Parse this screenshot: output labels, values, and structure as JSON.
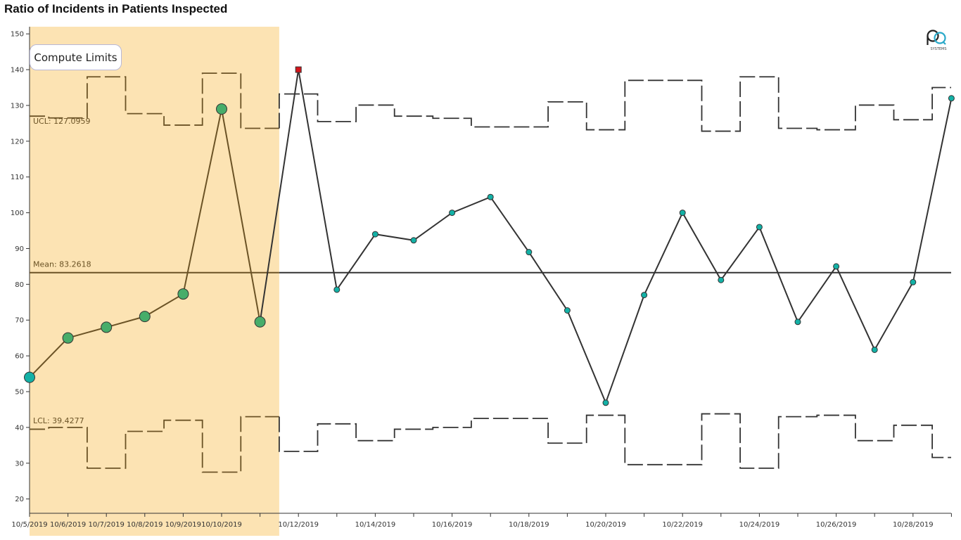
{
  "title": "Ratio of Incidents in Patients Inspected",
  "controls": {
    "compute_limits_label": "Compute Limits"
  },
  "logo": {
    "icon": "pq-systems-logo-icon",
    "text": "SYSTEMS"
  },
  "colors": {
    "highlight": "#fce3b3",
    "highlight_line": "#6b5326",
    "main_line": "#333333",
    "point_fill": "#13b1a6",
    "highlight_point_fill": "#47ad6a",
    "out_of_control": "#d4141a"
  },
  "chart_data": {
    "type": "line",
    "title": "Ratio of Incidents in Patients Inspected",
    "xlabel": "",
    "ylabel": "",
    "ylim": [
      16,
      152
    ],
    "yticks": [
      20,
      30,
      40,
      50,
      60,
      70,
      80,
      90,
      100,
      110,
      120,
      130,
      140,
      150
    ],
    "x": [
      "10/5/2019",
      "10/6/2019",
      "10/7/2019",
      "10/8/2019",
      "10/9/2019",
      "10/10/2019",
      "10/11/2019",
      "10/12/2019",
      "10/13/2019",
      "10/14/2019",
      "10/15/2019",
      "10/16/2019",
      "10/17/2019",
      "10/18/2019",
      "10/19/2019",
      "10/20/2019",
      "10/21/2019",
      "10/22/2019",
      "10/23/2019",
      "10/24/2019",
      "10/25/2019",
      "10/26/2019",
      "10/27/2019",
      "10/28/2019",
      "10/29/2019"
    ],
    "xtick_labels": [
      "10/5/2019",
      "10/6/2019",
      "10/7/2019",
      "10/8/2019",
      "10/9/2019",
      "10/10/2019",
      "",
      "10/12/2019",
      "",
      "10/14/2019",
      "",
      "10/16/2019",
      "",
      "10/18/2019",
      "",
      "10/20/2019",
      "",
      "10/22/2019",
      "",
      "10/24/2019",
      "",
      "10/26/2019",
      "",
      "10/28/2019",
      ""
    ],
    "series": [
      {
        "values": [
          54,
          65,
          68,
          71,
          77.3,
          129,
          69.5,
          140,
          78.5,
          94,
          92.3,
          100,
          104.4,
          89,
          72.7,
          46.9,
          77,
          100,
          81.2,
          96,
          69.5,
          85,
          61.7,
          80.6,
          132
        ]
      }
    ],
    "ucl_steps": [
      127,
      126.5,
      138,
      127.7,
      124.5,
      139,
      123.6,
      133.2,
      125.5,
      130.1,
      127,
      126.4,
      124,
      124,
      131,
      123.2,
      137,
      137,
      122.8,
      138,
      123.6,
      123.2,
      130.1,
      126,
      135
    ],
    "lcl_steps": [
      39.5,
      40,
      28.6,
      38.9,
      42,
      27.5,
      43,
      33.3,
      41,
      36.3,
      39.5,
      40,
      42.5,
      42.5,
      35.6,
      43.4,
      29.6,
      29.6,
      43.8,
      28.6,
      43,
      43.4,
      36.3,
      40.6,
      31.6
    ],
    "mean": 83.2618,
    "ucl": 127.0959,
    "lcl": 39.4277,
    "labels": {
      "ucl": "UCL: 127.0959",
      "mean": "Mean: 83.2618",
      "lcl": "LCL: 39.4277"
    },
    "highlighted_range": [
      0,
      6
    ],
    "out_of_control_indices": [
      7
    ],
    "grid": false,
    "legend": "none"
  }
}
